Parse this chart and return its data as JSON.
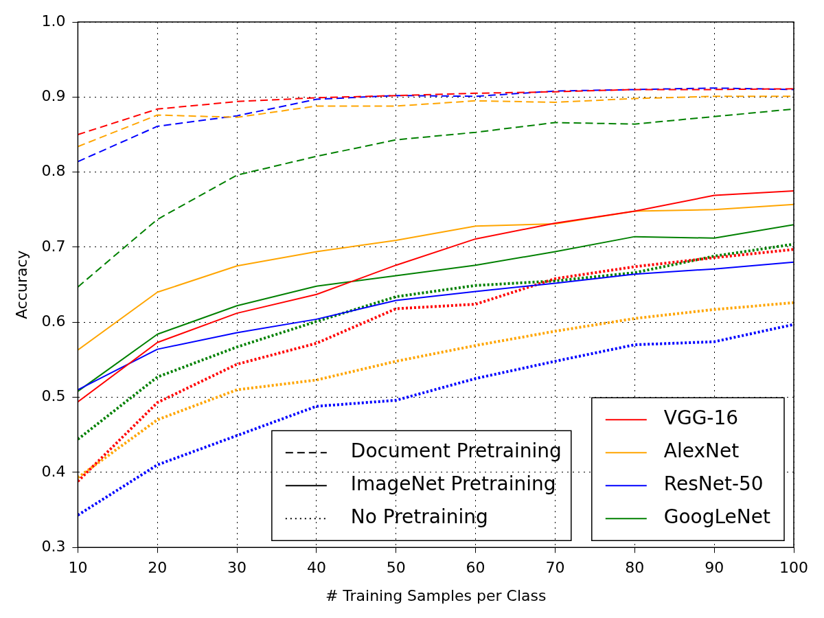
{
  "chart_data": {
    "type": "line",
    "xlabel": "# Training Samples per Class",
    "ylabel": "Accuracy",
    "x": [
      10,
      20,
      30,
      40,
      50,
      60,
      70,
      80,
      90,
      100
    ],
    "xlim": [
      10,
      100
    ],
    "xticks": [
      10,
      20,
      30,
      40,
      50,
      60,
      70,
      80,
      90,
      100
    ],
    "ylim": [
      0.3,
      1.0
    ],
    "yticks": [
      0.3,
      0.4,
      0.5,
      0.6,
      0.7,
      0.8,
      0.9,
      {
        "value": 1.0,
        "label": "1.0"
      }
    ],
    "grid": true,
    "legend": "bottom right",
    "marker": "none",
    "annotations": [
      "Document Pretraining",
      "ImageNet Pretraining",
      "No Pretraining"
    ],
    "series": [
      {
        "color": "#ff0000",
        "line_style": "dashed",
        "values": [
          0.85,
          0.884,
          0.894,
          0.899,
          0.902,
          0.905,
          0.907,
          0.91,
          0.91,
          0.911
        ]
      },
      {
        "color": "#ffa500",
        "line_style": "dashed",
        "values": [
          0.834,
          0.876,
          0.873,
          0.888,
          0.888,
          0.895,
          0.893,
          0.898,
          0.901,
          0.901
        ]
      },
      {
        "color": "#0000ff",
        "line_style": "dashed",
        "values": [
          0.814,
          0.861,
          0.875,
          0.897,
          0.902,
          0.901,
          0.908,
          0.91,
          0.912,
          0.91
        ]
      },
      {
        "color": "#008000",
        "line_style": "dashed",
        "values": [
          0.647,
          0.737,
          0.796,
          0.821,
          0.843,
          0.853,
          0.866,
          0.864,
          0.874,
          0.884
        ]
      },
      {
        "name": "VGG-16",
        "color": "#ff0000",
        "line_style": "solid",
        "values": [
          0.494,
          0.573,
          0.612,
          0.637,
          0.676,
          0.711,
          0.732,
          0.748,
          0.769,
          0.775
        ]
      },
      {
        "name": "AlexNet",
        "color": "#ffa500",
        "line_style": "solid",
        "values": [
          0.563,
          0.64,
          0.675,
          0.694,
          0.709,
          0.728,
          0.731,
          0.748,
          0.75,
          0.757
        ]
      },
      {
        "name": "ResNet-50",
        "color": "#0000ff",
        "line_style": "solid",
        "values": [
          0.51,
          0.564,
          0.586,
          0.604,
          0.629,
          0.641,
          0.652,
          0.664,
          0.671,
          0.68
        ]
      },
      {
        "name": "GoogLeNet",
        "color": "#008000",
        "line_style": "solid",
        "values": [
          0.508,
          0.584,
          0.622,
          0.648,
          0.662,
          0.676,
          0.694,
          0.714,
          0.712,
          0.73
        ]
      },
      {
        "color": "#ff0000",
        "line_style": "dotted",
        "values": [
          0.388,
          0.493,
          0.544,
          0.572,
          0.618,
          0.624,
          0.658,
          0.674,
          0.686,
          0.697
        ]
      },
      {
        "color": "#ffa500",
        "line_style": "dotted",
        "values": [
          0.393,
          0.47,
          0.51,
          0.523,
          0.548,
          0.569,
          0.588,
          0.605,
          0.617,
          0.626
        ]
      },
      {
        "color": "#0000ff",
        "line_style": "dotted",
        "values": [
          0.343,
          0.41,
          0.449,
          0.488,
          0.496,
          0.525,
          0.548,
          0.57,
          0.574,
          0.597
        ]
      },
      {
        "color": "#008000",
        "line_style": "dotted",
        "values": [
          0.444,
          0.527,
          0.567,
          0.601,
          0.634,
          0.649,
          0.655,
          0.666,
          0.688,
          0.704
        ]
      }
    ]
  }
}
